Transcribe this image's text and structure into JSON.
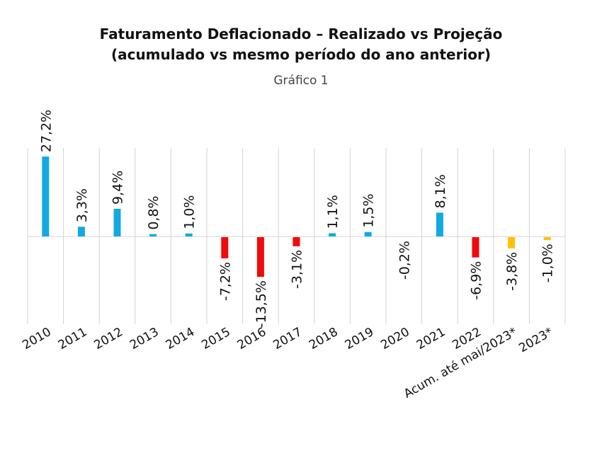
{
  "chart_data": {
    "type": "bar",
    "title": "Faturamento Deflacionado – Realizado vs Projeção",
    "title_line2": "(acumulado vs mesmo período do ano anterior)",
    "subtitle": "Gráfico 1",
    "xlabel": "",
    "ylabel": "",
    "ylim": [
      -30,
      30
    ],
    "grid": "vertical",
    "categories": [
      "2010",
      "2011",
      "2012",
      "2013",
      "2014",
      "2015",
      "2016",
      "2017",
      "2018",
      "2019",
      "2020",
      "2021",
      "2022",
      "Acum. até mai/2023*",
      "2023*"
    ],
    "values": [
      27.2,
      3.3,
      9.4,
      0.8,
      1.0,
      -7.2,
      -13.5,
      -3.1,
      1.1,
      1.5,
      -0.2,
      8.1,
      -6.9,
      -3.8,
      -1.0
    ],
    "labels": [
      "27,2%",
      "3,3%",
      "9,4%",
      "0,8%",
      "1,0%",
      "-7,2%",
      "-13,5%",
      "-3,1%",
      "1,1%",
      "1,5%",
      "-0,2%",
      "8,1%",
      "-6,9%",
      "-3,8%",
      "-1,0%"
    ],
    "series_type": [
      "realizado",
      "realizado",
      "realizado",
      "realizado",
      "realizado",
      "realizado",
      "realizado",
      "realizado",
      "realizado",
      "realizado",
      "realizado",
      "realizado",
      "realizado",
      "projecao",
      "projecao"
    ],
    "colors": {
      "positive": "#12A9E3",
      "negative": "#F10A0A",
      "projection": "#FFC000",
      "grid": "#D3D3D3"
    }
  }
}
